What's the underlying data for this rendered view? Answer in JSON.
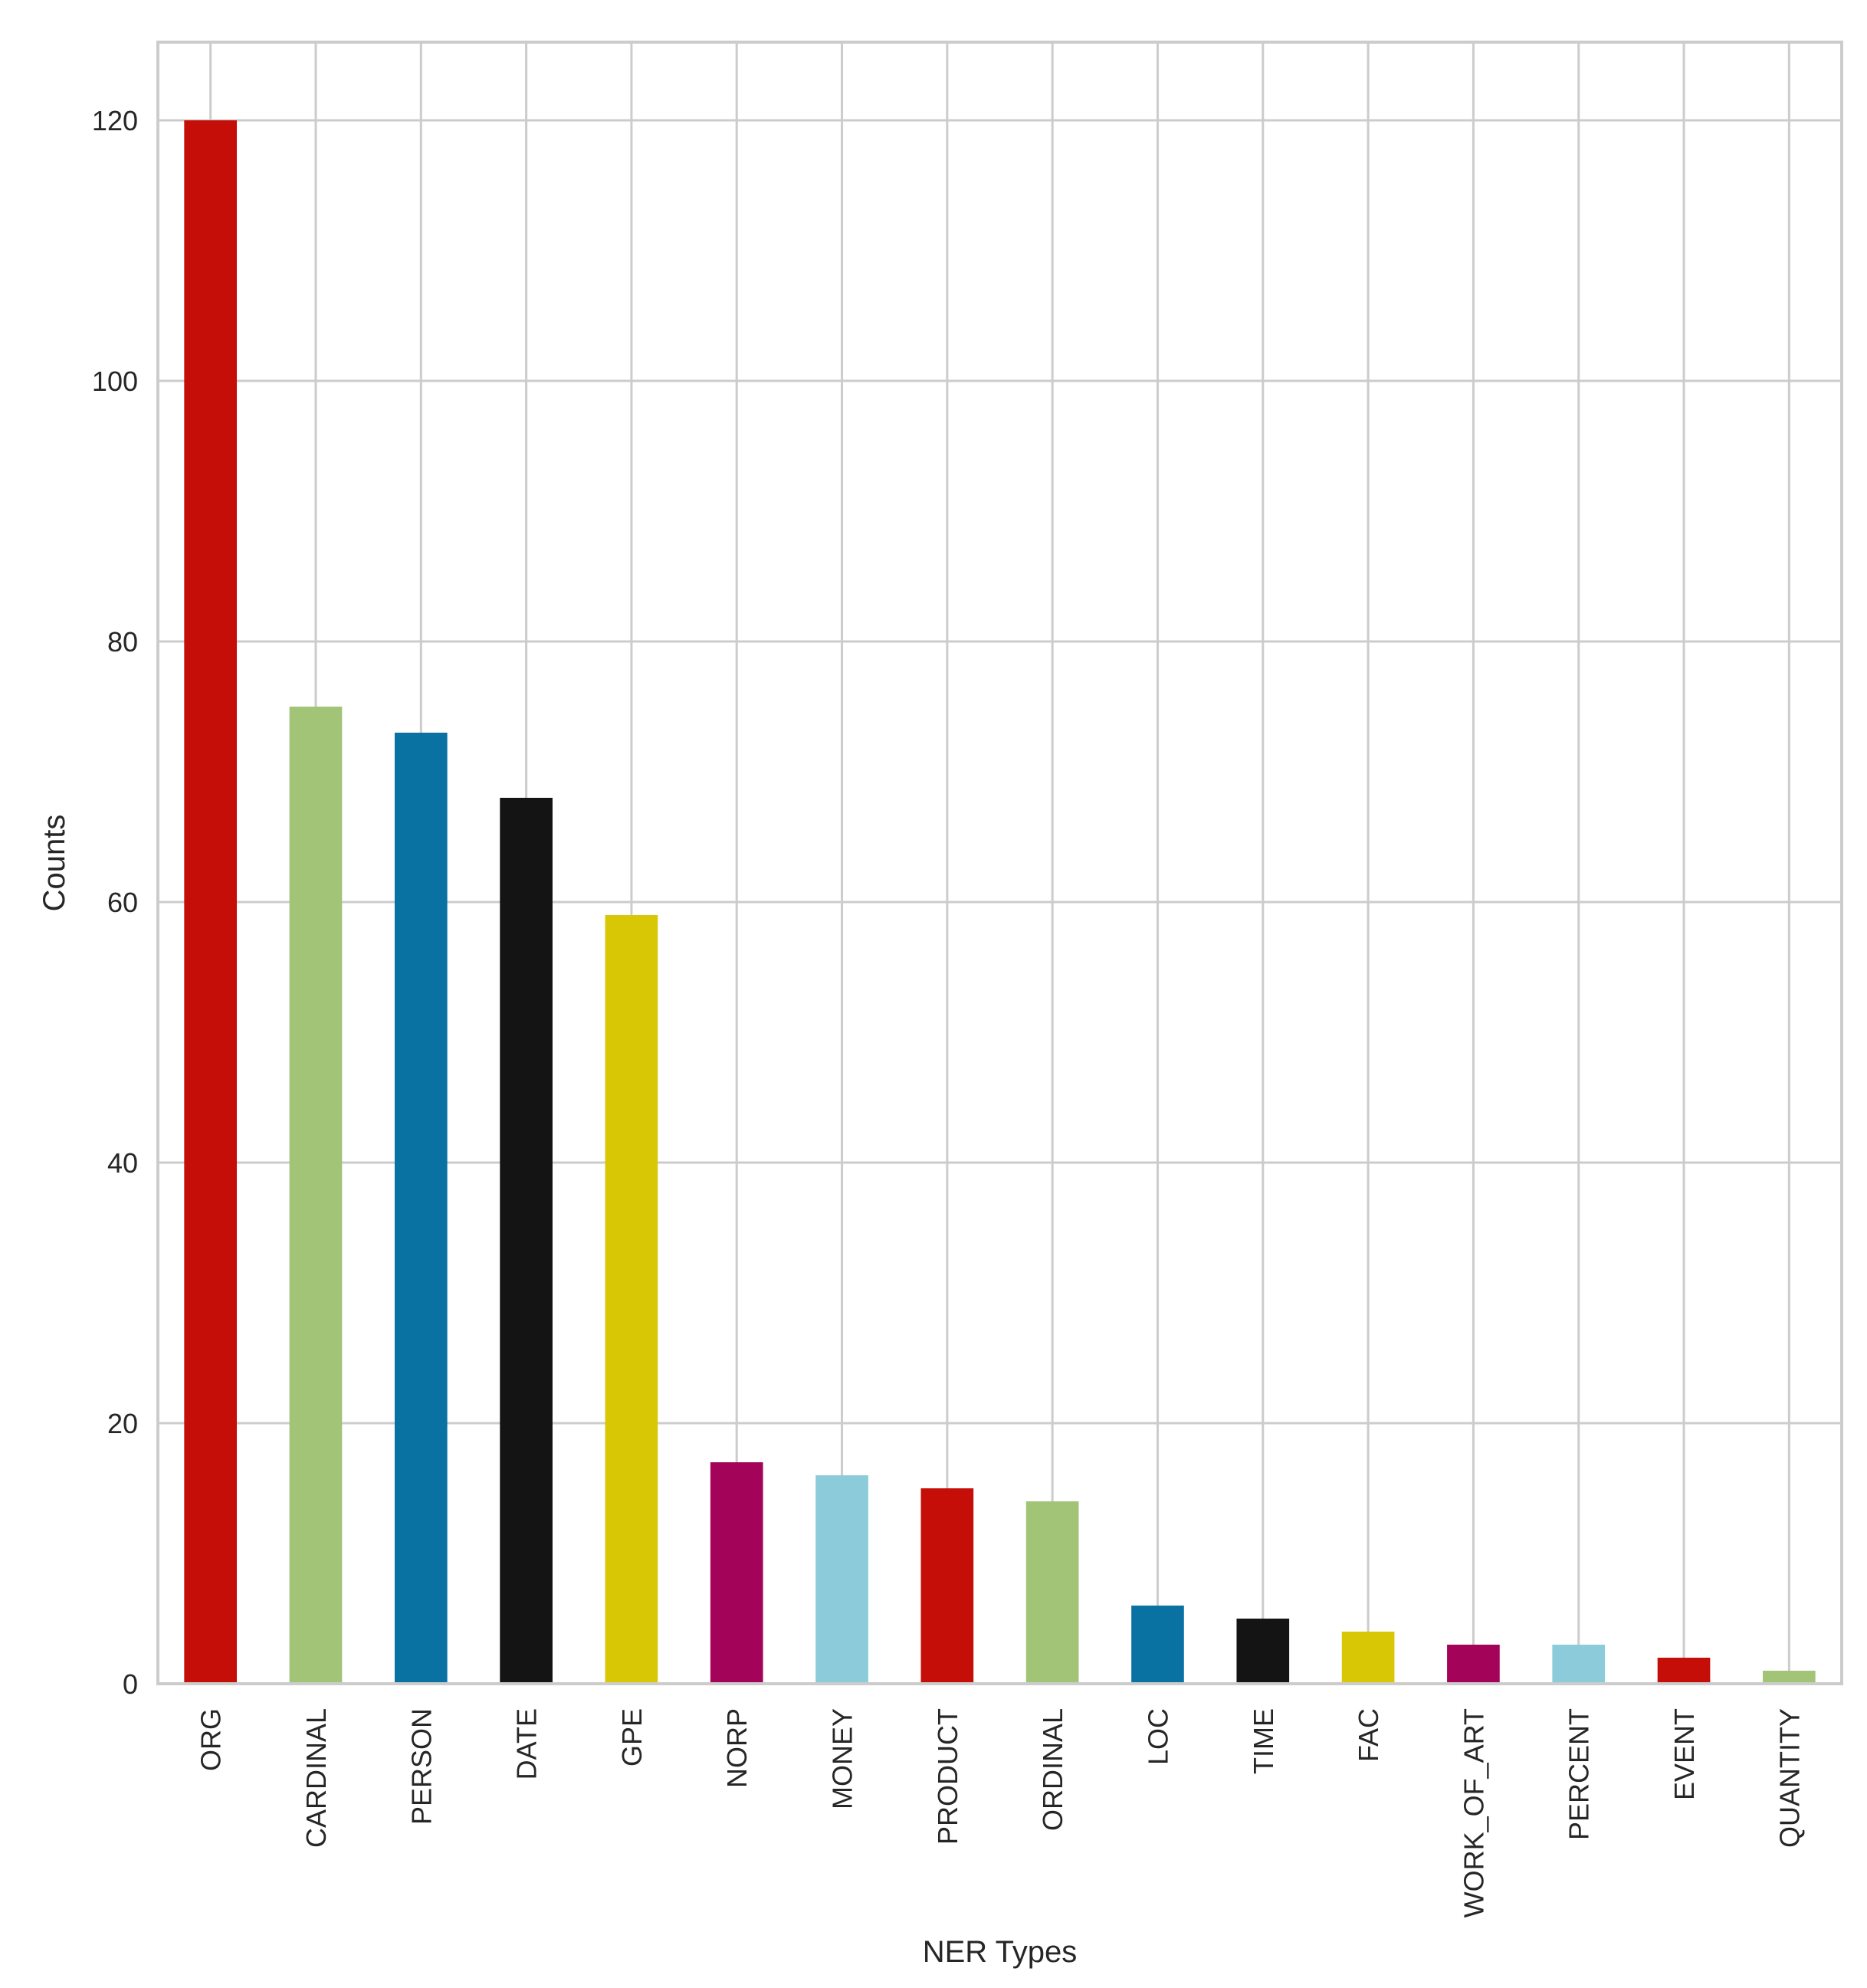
{
  "chart_data": {
    "type": "bar",
    "title": "",
    "xlabel": "NER Types",
    "ylabel": "Counts",
    "ylim": [
      0,
      126
    ],
    "yticks": [
      0,
      20,
      40,
      60,
      80,
      100,
      120
    ],
    "grid": true,
    "legend": "none",
    "categories": [
      "ORG",
      "CARDINAL",
      "PERSON",
      "DATE",
      "GPE",
      "NORP",
      "MONEY",
      "PRODUCT",
      "ORDINAL",
      "LOC",
      "TIME",
      "FAC",
      "WORK_OF_ART",
      "PERCENT",
      "EVENT",
      "QUANTITY"
    ],
    "values": [
      120,
      75,
      73,
      68,
      59,
      17,
      16,
      15,
      14,
      6,
      5,
      4,
      3,
      3,
      2,
      1
    ],
    "colors": [
      "#c40e07",
      "#a1c476",
      "#0a72a3",
      "#141414",
      "#d8c704",
      "#a30358",
      "#8ccbda",
      "#c40e07",
      "#a1c476",
      "#0a72a3",
      "#141414",
      "#d8c704",
      "#a30358",
      "#8ccbda",
      "#c40e07",
      "#a1c476"
    ]
  }
}
